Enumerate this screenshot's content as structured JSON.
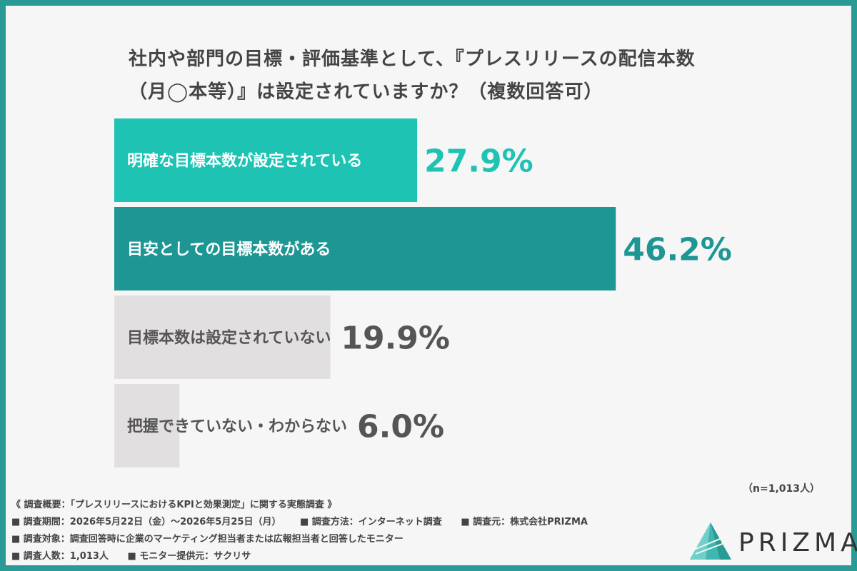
{
  "title": {
    "line1": "社内や部門の目標・評価基準として、『プレスリリースの配信本数",
    "line2": "（月◯本等）』は設定されていますか？（複数回答可）"
  },
  "chart_data": {
    "type": "bar",
    "orientation": "horizontal",
    "categories": [
      "明確な目標本数が設定されている",
      "目安としての目標本数がある",
      "目標本数は設定されていない",
      "把握できていない・わからない"
    ],
    "values": [
      27.9,
      46.2,
      19.9,
      6.0
    ],
    "value_labels": [
      "27.9%",
      "46.2%",
      "19.9%",
      "6.0%"
    ],
    "xlim": [
      0,
      100
    ],
    "grid": false,
    "bar_colors": [
      "#1ec3b4",
      "#1e9694",
      "#e2dfe0",
      "#e2dfe0"
    ],
    "label_colors": [
      "#ffffff",
      "#ffffff",
      "#555555",
      "#555555"
    ],
    "value_colors": [
      "#1ec3b4",
      "#1e9694",
      "#555555",
      "#555555"
    ]
  },
  "sample_size": "（n=1,013人）",
  "footnotes": {
    "summary": "《 調査概要：「プレスリリースにおけるKPIと効果測定」に関する実態調査 》",
    "period": "■ 調査期間：2026年5月22日（金）〜2026年5月25日（月）",
    "method": "■ 調査方法：インターネット調査",
    "organizer": "■ 調査元：株式会社PRIZMA",
    "target": "■ 調査対象：調査回答時に企業のマーケティング担当者または広報担当者と回答したモニター",
    "count": "■ 調査人数：1,013人",
    "provider": "■ モニター提供元：サクリサ"
  },
  "logo": {
    "text": "PRIZMA",
    "icon": "prism-triangle-icon"
  },
  "colors": {
    "frame": "#2a9a96",
    "background": "#f6f6f6"
  }
}
